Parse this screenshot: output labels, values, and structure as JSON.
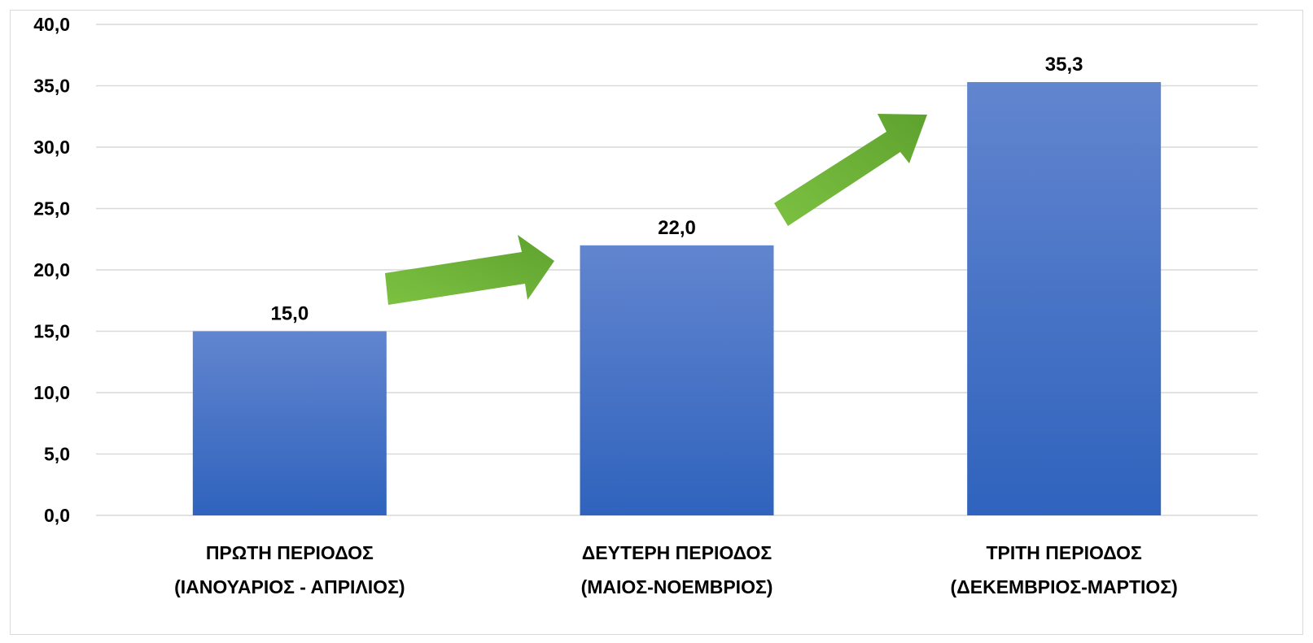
{
  "chart_data": {
    "type": "bar",
    "categories": [
      [
        "ΠΡΩΤΗ ΠΕΡΙΟΔΟΣ",
        "(ΙΑΝΟΥΑΡΙΟΣ - ΑΠΡΙΛΙΟΣ)"
      ],
      [
        "ΔΕΥΤΕΡΗ ΠΕΡΙΟΔΟΣ",
        "(ΜΑΙΟΣ-ΝΟΕΜΒΡΙΟΣ)"
      ],
      [
        "ΤΡΙΤΗ ΠΕΡΙΟΔΟΣ",
        "(ΔΕΚΕΜΒΡΙΟΣ-ΜΑΡΤΙΟΣ)"
      ]
    ],
    "values": [
      15.0,
      22.0,
      35.3
    ],
    "data_labels": [
      "15,0",
      "22,0",
      "35,3"
    ],
    "y_ticks": [
      "0,0",
      "5,0",
      "10,0",
      "15,0",
      "20,0",
      "25,0",
      "30,0",
      "35,0",
      "40,0"
    ],
    "ylim": [
      0,
      40
    ],
    "grid": true,
    "legend": "none",
    "title": "",
    "xlabel": "",
    "ylabel": "",
    "bar_color_top": "#6285cf",
    "bar_color_bottom": "#2f63bd",
    "arrow_color": "#6fb33b",
    "annotations": [
      "up-right-arrow",
      "up-right-arrow"
    ]
  }
}
